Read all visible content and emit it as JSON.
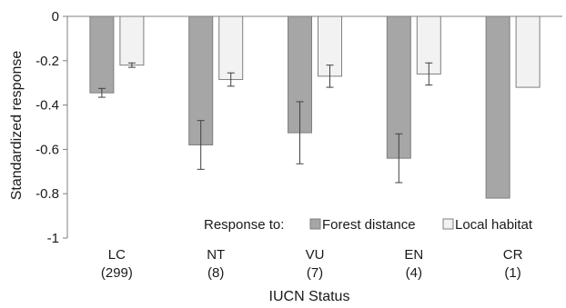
{
  "chart_data": {
    "type": "bar",
    "categories": [
      "LC",
      "NT",
      "VU",
      "EN",
      "CR"
    ],
    "category_counts": [
      "(299)",
      "(8)",
      "(7)",
      "(4)",
      "(1)"
    ],
    "series": [
      {
        "name": "Forest distance",
        "color": "#a6a6a6",
        "values": [
          -0.345,
          -0.58,
          -0.525,
          -0.64,
          -0.82
        ],
        "errors": [
          0.02,
          0.11,
          0.14,
          0.11,
          0.0
        ]
      },
      {
        "name": "Local habitat",
        "color": "#f2f2f2",
        "values": [
          -0.22,
          -0.285,
          -0.27,
          -0.26,
          -0.32
        ],
        "errors": [
          0.01,
          0.03,
          0.05,
          0.05,
          0.0
        ]
      }
    ],
    "title": "",
    "xlabel": "IUCN Status",
    "ylabel": "Standardized response",
    "ylim": [
      -1,
      0
    ],
    "yticks": [
      0,
      -0.2,
      -0.4,
      -0.6,
      -0.8,
      -1
    ],
    "ytick_labels": [
      "0",
      "-0.2",
      "-0.4",
      "-0.6",
      "-0.8",
      "-1"
    ],
    "grid": false,
    "legend": {
      "title": "Response to:",
      "placement": "bottom-right"
    }
  }
}
